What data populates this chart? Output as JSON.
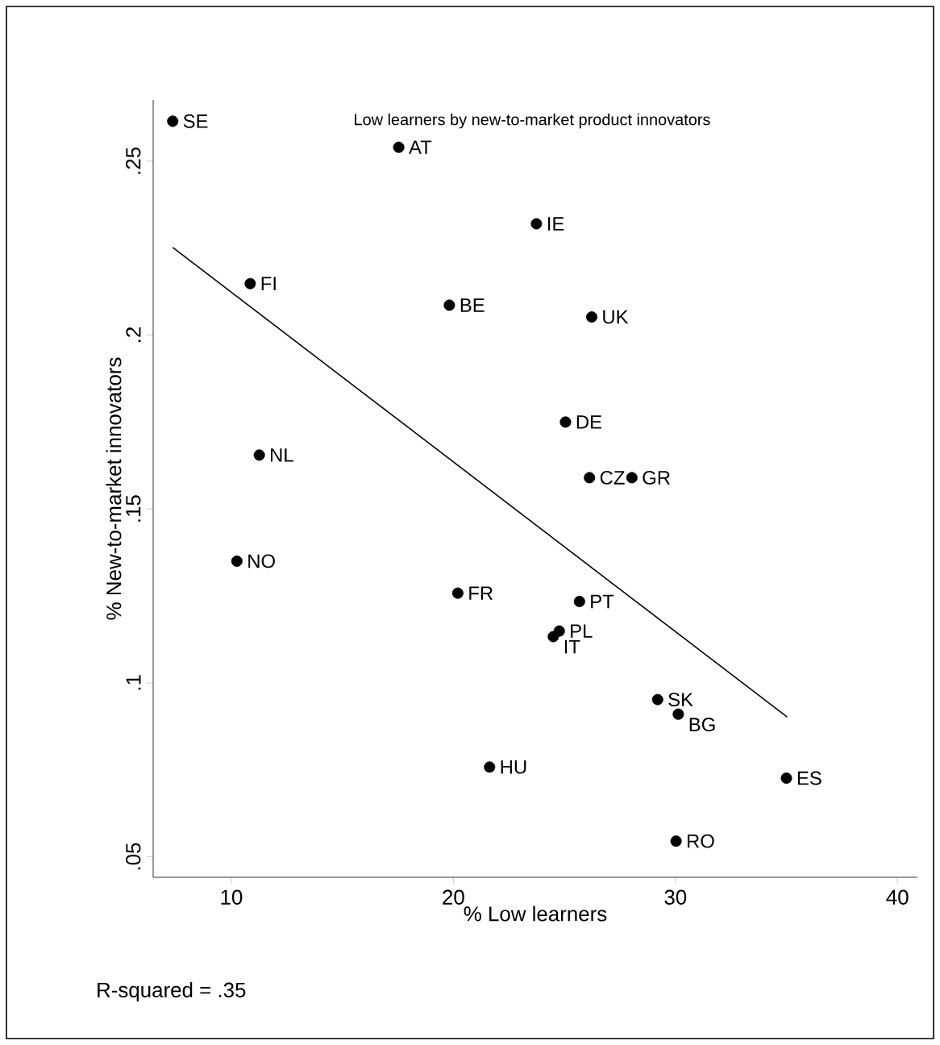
{
  "chart_data": {
    "type": "scatter",
    "title": "Low learners by new-to-market product innovators",
    "xlabel": "% Low learners",
    "ylabel": "% New-to-market innovators",
    "xlim": [
      6.48,
      40.9
    ],
    "ylim": [
      0.0441,
      0.2676
    ],
    "xticks": [
      10,
      20,
      30,
      40
    ],
    "yticks": [
      {
        "value": 0.05,
        "label": ".05"
      },
      {
        "value": 0.1,
        "label": ".1"
      },
      {
        "value": 0.15,
        "label": ".15"
      },
      {
        "value": 0.2,
        "label": ".2"
      },
      {
        "value": 0.25,
        "label": ".25"
      }
    ],
    "grid": false,
    "series": [
      {
        "marker": "circle",
        "color": "#000000",
        "x": [
          7.36,
          17.54,
          23.74,
          10.85,
          19.82,
          26.23,
          25.05,
          11.26,
          26.13,
          28.04,
          10.25,
          20.2,
          25.68,
          24.77,
          24.5,
          29.2,
          30.13,
          21.63,
          35.0,
          30.03
        ],
        "values": [
          0.2615,
          0.254,
          0.232,
          0.2148,
          0.2086,
          0.2052,
          0.175,
          0.1655,
          0.159,
          0.159,
          0.135,
          0.1258,
          0.1234,
          0.1149,
          0.1133,
          0.0952,
          0.091,
          0.0758,
          0.0726,
          0.0545
        ]
      },
      {
        "type": "line",
        "marker": "none",
        "color": "#000000",
        "x": [
          7.36,
          35.03
        ],
        "values": [
          0.2252,
          0.0902
        ]
      }
    ],
    "annotations": [
      {
        "text": "SE",
        "x": 7.36,
        "y": 0.2615
      },
      {
        "text": "AT",
        "x": 17.54,
        "y": 0.254
      },
      {
        "text": "IE",
        "x": 23.74,
        "y": 0.232
      },
      {
        "text": "FI",
        "x": 10.85,
        "y": 0.2148
      },
      {
        "text": "BE",
        "x": 19.82,
        "y": 0.2086
      },
      {
        "text": "UK",
        "x": 26.23,
        "y": 0.2052
      },
      {
        "text": "DE",
        "x": 25.05,
        "y": 0.175
      },
      {
        "text": "NL",
        "x": 11.26,
        "y": 0.1655
      },
      {
        "text": "CZ",
        "x": 26.13,
        "y": 0.159
      },
      {
        "text": "GR",
        "x": 28.04,
        "y": 0.159
      },
      {
        "text": "NO",
        "x": 10.25,
        "y": 0.135
      },
      {
        "text": "FR",
        "x": 20.2,
        "y": 0.1258
      },
      {
        "text": "PT",
        "x": 25.68,
        "y": 0.1234
      },
      {
        "text": "PL",
        "x": 24.77,
        "y": 0.1149
      },
      {
        "text": "IT",
        "x": 24.5,
        "y": 0.1133
      },
      {
        "text": "SK",
        "x": 29.2,
        "y": 0.0952
      },
      {
        "text": "BG",
        "x": 30.13,
        "y": 0.091
      },
      {
        "text": "HU",
        "x": 21.63,
        "y": 0.0758
      },
      {
        "text": "ES",
        "x": 35.0,
        "y": 0.0726
      },
      {
        "text": "RO",
        "x": 30.03,
        "y": 0.0545
      },
      "R-squared = .35"
    ]
  }
}
